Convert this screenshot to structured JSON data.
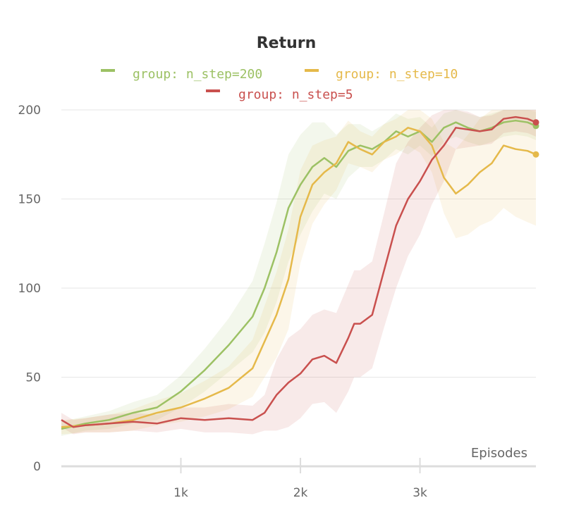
{
  "chart_data": {
    "type": "line",
    "title": "Return",
    "xlabel": "Episodes",
    "ylabel": "",
    "xlim": [
      0,
      3970
    ],
    "ylim": [
      0,
      200
    ],
    "yticks": [
      0,
      50,
      100,
      150,
      200
    ],
    "xticks": [
      {
        "value": 1000,
        "label": "1k"
      },
      {
        "value": 2000,
        "label": "2k"
      },
      {
        "value": 3000,
        "label": "3k"
      }
    ],
    "grid": true,
    "legend_position": "top",
    "series": [
      {
        "name": "group: n_step=200",
        "color": "#9cc164",
        "x": [
          0,
          200,
          400,
          600,
          800,
          1000,
          1200,
          1400,
          1600,
          1700,
          1800,
          1900,
          2000,
          2100,
          2200,
          2300,
          2400,
          2500,
          2600,
          2700,
          2800,
          2900,
          3000,
          3100,
          3200,
          3300,
          3400,
          3500,
          3600,
          3700,
          3800,
          3900,
          3970
        ],
        "y": [
          21,
          24,
          26,
          30,
          33,
          42,
          54,
          68,
          84,
          100,
          120,
          145,
          158,
          168,
          173,
          168,
          177,
          180,
          178,
          182,
          188,
          185,
          188,
          182,
          190,
          193,
          190,
          188,
          190,
          193,
          194,
          193,
          191
        ],
        "band": [
          4,
          4,
          5,
          6,
          7,
          9,
          12,
          15,
          20,
          25,
          28,
          30,
          28,
          25,
          20,
          18,
          15,
          12,
          10,
          10,
          10,
          10,
          8,
          8,
          8,
          8,
          8,
          8,
          8,
          8,
          8,
          8,
          8
        ]
      },
      {
        "name": "group: n_step=10",
        "color": "#e5b94a",
        "x": [
          0,
          200,
          400,
          600,
          800,
          1000,
          1200,
          1400,
          1600,
          1700,
          1800,
          1900,
          2000,
          2100,
          2200,
          2300,
          2400,
          2500,
          2600,
          2700,
          2800,
          2900,
          3000,
          3100,
          3200,
          3300,
          3400,
          3500,
          3600,
          3700,
          3800,
          3900,
          3970
        ],
        "y": [
          22,
          23,
          24,
          26,
          30,
          33,
          38,
          44,
          55,
          70,
          85,
          105,
          140,
          158,
          165,
          170,
          182,
          178,
          175,
          182,
          185,
          190,
          188,
          180,
          162,
          153,
          158,
          165,
          170,
          180,
          178,
          177,
          175
        ],
        "band": [
          4,
          4,
          5,
          6,
          7,
          8,
          10,
          12,
          16,
          20,
          24,
          28,
          26,
          22,
          18,
          15,
          12,
          10,
          10,
          10,
          10,
          10,
          12,
          15,
          20,
          25,
          28,
          30,
          32,
          35,
          38,
          40,
          40
        ]
      },
      {
        "name": "group: n_step=5",
        "color": "#c9504e",
        "x": [
          0,
          100,
          200,
          400,
          600,
          800,
          1000,
          1200,
          1400,
          1600,
          1700,
          1800,
          1900,
          2000,
          2100,
          2200,
          2300,
          2400,
          2450,
          2500,
          2600,
          2700,
          2800,
          2900,
          3000,
          3100,
          3200,
          3300,
          3400,
          3500,
          3600,
          3700,
          3800,
          3900,
          3970
        ],
        "y": [
          26,
          22,
          23,
          24,
          25,
          24,
          27,
          26,
          27,
          26,
          30,
          40,
          47,
          52,
          60,
          62,
          58,
          72,
          80,
          80,
          85,
          110,
          135,
          150,
          160,
          172,
          180,
          190,
          189,
          188,
          189,
          195,
          196,
          195,
          193
        ],
        "band": [
          4,
          4,
          4,
          5,
          5,
          5,
          6,
          7,
          8,
          8,
          10,
          20,
          25,
          25,
          25,
          26,
          28,
          30,
          30,
          30,
          30,
          32,
          35,
          32,
          30,
          25,
          20,
          12,
          10,
          8,
          8,
          8,
          8,
          8,
          8
        ]
      }
    ]
  }
}
